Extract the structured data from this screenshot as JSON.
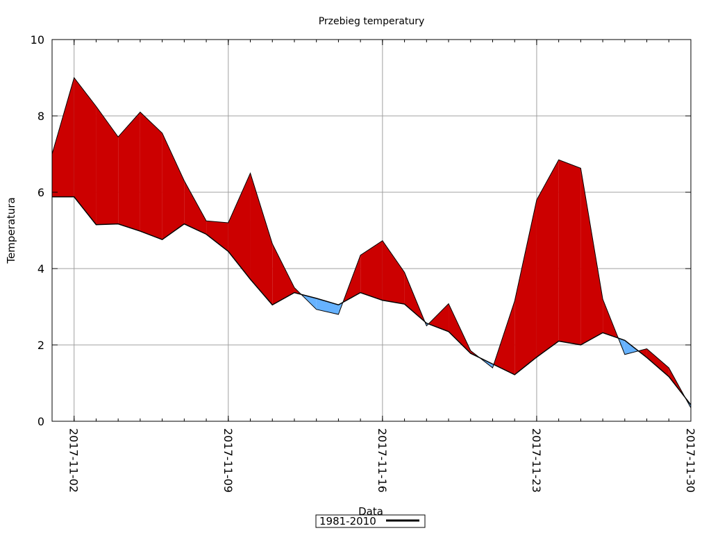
{
  "chart_data": {
    "type": "area",
    "title": "Przebieg temperatury",
    "xlabel": "Data",
    "ylabel": "Temperatura",
    "x_axis_type": "date",
    "xlim": [
      "2017-11-01",
      "2017-11-30"
    ],
    "ylim": [
      0,
      10
    ],
    "y_ticks": [
      0,
      2,
      4,
      6,
      8,
      10
    ],
    "x_ticks": [
      "2017-11-02",
      "2017-11-09",
      "2017-11-16",
      "2017-11-23",
      "2017-11-30"
    ],
    "grid": true,
    "legend_position": "bottom-center",
    "fill_above_color": "#cc0000",
    "fill_below_color": "#66b2ff",
    "line_color": "#000000",
    "x": [
      "2017-11-01",
      "2017-11-02",
      "2017-11-03",
      "2017-11-04",
      "2017-11-05",
      "2017-11-06",
      "2017-11-07",
      "2017-11-08",
      "2017-11-09",
      "2017-11-10",
      "2017-11-11",
      "2017-11-12",
      "2017-11-13",
      "2017-11-14",
      "2017-11-15",
      "2017-11-16",
      "2017-11-17",
      "2017-11-18",
      "2017-11-19",
      "2017-11-20",
      "2017-11-21",
      "2017-11-22",
      "2017-11-23",
      "2017-11-24",
      "2017-11-25",
      "2017-11-26",
      "2017-11-27",
      "2017-11-28",
      "2017-11-29",
      "2017-11-30"
    ],
    "series": [
      {
        "values": [
          7.0,
          9.0,
          8.25,
          7.45,
          8.1,
          7.55,
          6.3,
          5.25,
          5.2,
          6.5,
          4.65,
          3.5,
          2.93,
          2.8,
          4.35,
          4.73,
          3.9,
          2.5,
          3.08,
          1.85,
          1.4,
          3.15,
          5.8,
          6.85,
          6.63,
          3.2,
          1.75,
          1.9,
          1.4,
          0.35
        ]
      },
      {
        "name": "1981-2010",
        "values": [
          5.88,
          5.88,
          5.15,
          5.17,
          4.98,
          4.76,
          5.17,
          4.9,
          4.45,
          3.72,
          3.05,
          3.37,
          3.22,
          3.05,
          3.37,
          3.17,
          3.07,
          2.57,
          2.35,
          1.78,
          1.5,
          1.22,
          1.68,
          2.1,
          2.0,
          2.32,
          2.12,
          1.67,
          1.17,
          0.43
        ]
      }
    ]
  }
}
